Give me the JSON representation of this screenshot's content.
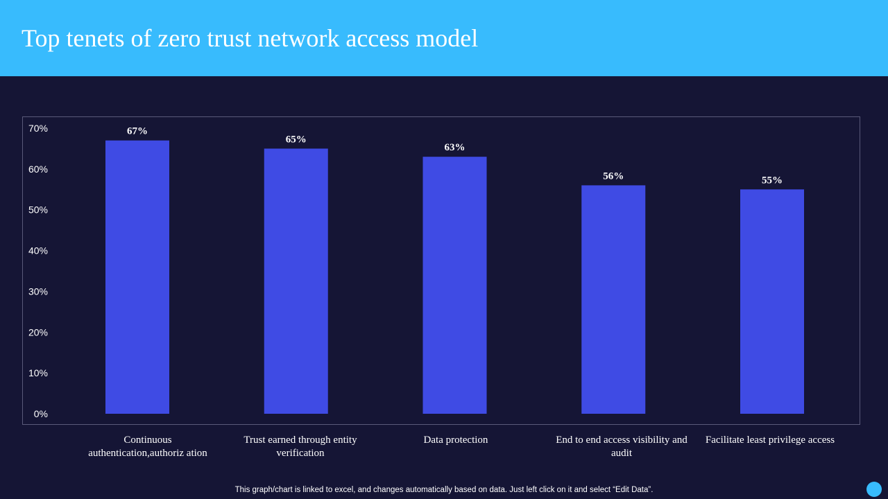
{
  "header": {
    "title": "Top tenets of zero trust network access model"
  },
  "colors": {
    "header_bg": "#38bbfd",
    "background": "#151535",
    "bar": "#3f4be4",
    "accent_dot": "#38bbfd"
  },
  "chart_data": {
    "type": "bar",
    "title": "",
    "xlabel": "",
    "ylabel": "",
    "ylim": [
      0,
      70
    ],
    "yticks": [
      "0%",
      "10%",
      "20%",
      "30%",
      "40%",
      "50%",
      "60%",
      "70%"
    ],
    "categories": [
      "Continuous authentication,authoriz ation",
      "Trust earned through entity verification",
      "Data protection",
      "End to end access visibility and audit",
      "Facilitate least privilege access"
    ],
    "values": [
      67,
      65,
      63,
      56,
      55
    ],
    "data_labels": [
      "67%",
      "65%",
      "63%",
      "56%",
      "55%"
    ],
    "grid": false,
    "legend": "none"
  },
  "footer": {
    "note": "This graph/chart is linked to excel,  and changes automatically based on data. Just left click on it and select “Edit Data”."
  },
  "decor": {
    "corner_icon": "circle-icon"
  }
}
